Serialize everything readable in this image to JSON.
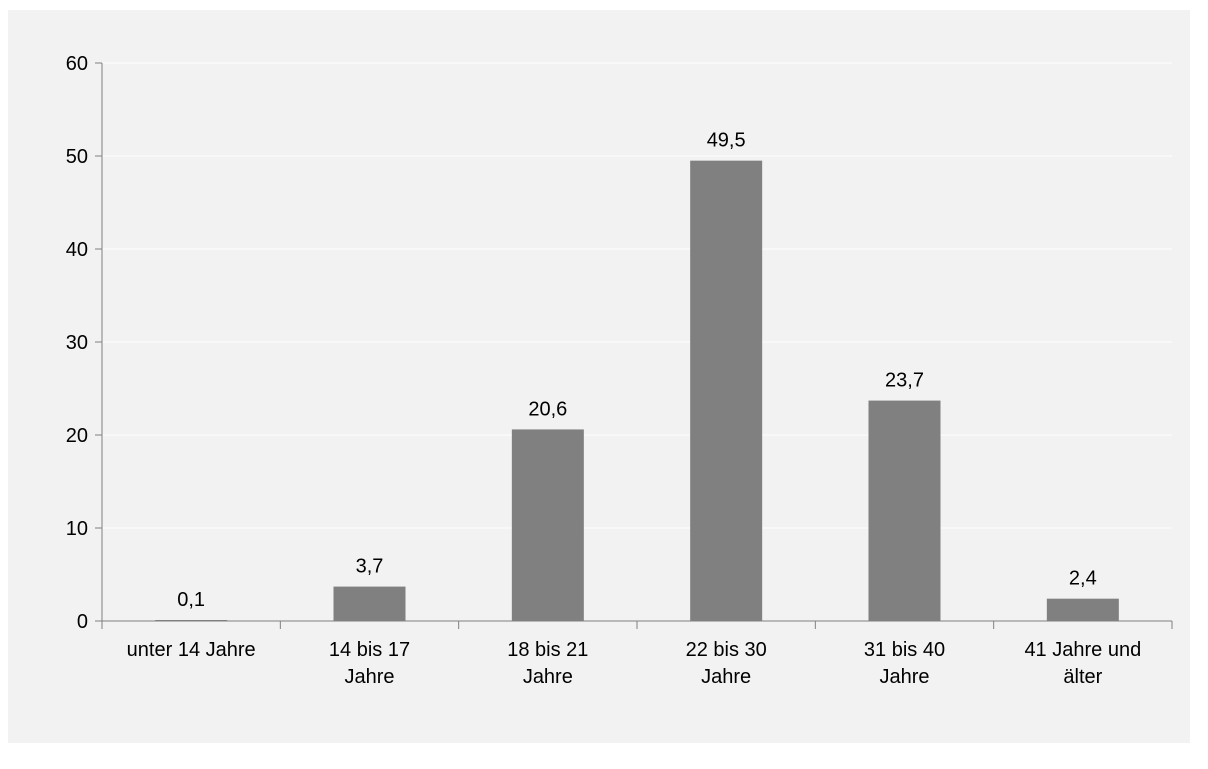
{
  "chart_data": {
    "type": "bar",
    "title": "",
    "xlabel": "",
    "ylabel": "",
    "categories": [
      [
        "unter 14 Jahre"
      ],
      [
        "14 bis 17",
        "Jahre"
      ],
      [
        "18 bis 21",
        "Jahre"
      ],
      [
        "22 bis 30",
        "Jahre"
      ],
      [
        "31 bis 40",
        "Jahre"
      ],
      [
        "41 Jahre und",
        "älter"
      ]
    ],
    "values": [
      0.1,
      3.7,
      20.6,
      49.5,
      23.7,
      2.4
    ],
    "value_labels": [
      "0,1",
      "3,7",
      "20,6",
      "49,5",
      "23,7",
      "2,4"
    ],
    "ylim": [
      0,
      60
    ],
    "yticks": [
      0,
      10,
      20,
      30,
      40,
      50,
      60
    ],
    "grid": true,
    "bar_color": "#808080",
    "background_color": "#f2f2f2",
    "gridline_color": "#ffffff",
    "axis_color": "#808080"
  }
}
